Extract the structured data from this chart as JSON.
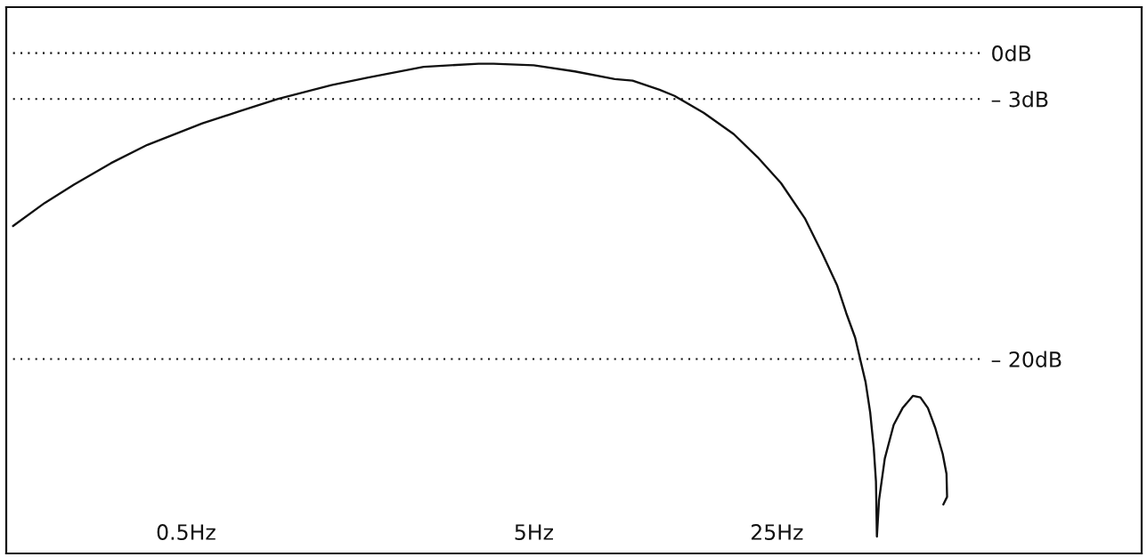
{
  "chart_data": {
    "type": "line",
    "log": "x",
    "grid": "y",
    "x": [
      0.159,
      0.196,
      0.238,
      0.304,
      0.387,
      0.557,
      0.714,
      0.92,
      1.31,
      1.67,
      2.41,
      3.47,
      3.83,
      5.0,
      6.56,
      8.55,
      9.62,
      11.5,
      12.7,
      15.4,
      18.8,
      22.0,
      25.7,
      30.1,
      33.8,
      37.3,
      39.6,
      42.0,
      43.3,
      45.0,
      46.4,
      47.5,
      48.2,
      48.5,
      49.2,
      51.1,
      54.2,
      57.5,
      61.6,
      64.7,
      68.0,
      71.4,
      75.0,
      76.9,
      77.2,
      75.3
    ],
    "series": [
      {
        "color": "#111111",
        "values": [
          -11.3,
          -9.8,
          -8.6,
          -7.2,
          -6.0,
          -4.6,
          -3.8,
          -3.0,
          -2.1,
          -1.6,
          -0.9,
          -0.7,
          -0.7,
          -0.8,
          -1.2,
          -1.7,
          -1.8,
          -2.4,
          -2.8,
          -3.9,
          -5.3,
          -6.8,
          -8.5,
          -10.8,
          -13.1,
          -15.2,
          -17.0,
          -18.6,
          -19.9,
          -21.5,
          -23.5,
          -25.8,
          -28.0,
          -31.6,
          -29.2,
          -26.5,
          -24.3,
          -23.2,
          -22.4,
          -22.5,
          -23.2,
          -24.5,
          -26.2,
          -27.5,
          -29.0,
          -29.5
        ]
      }
    ],
    "xlim": [
      0.152,
      280
    ],
    "xticks": [
      {
        "value": 0.5,
        "label": "0.5Hz"
      },
      {
        "value": 5,
        "label": "5Hz"
      },
      {
        "value": 25,
        "label": "25Hz"
      }
    ],
    "ylim": [
      -32.7,
      3.0
    ],
    "yticks": [
      {
        "value": 0,
        "label": "0dB"
      },
      {
        "value": -3,
        "label": "– 3dB"
      },
      {
        "value": -20,
        "label": "– 20dB"
      }
    ]
  }
}
